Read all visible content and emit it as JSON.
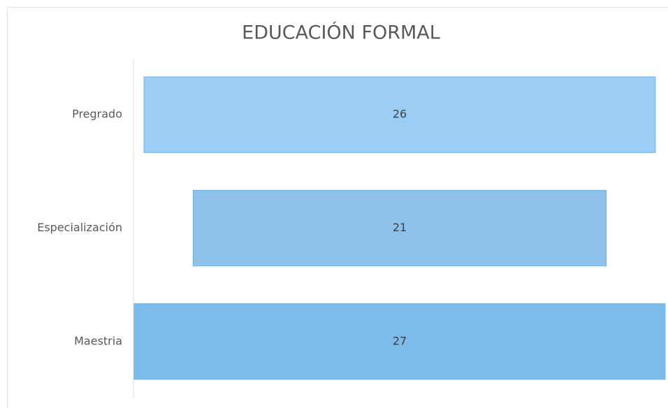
{
  "chart_data": {
    "type": "funnel",
    "title": "EDUCACIÓN FORMAL",
    "categories": [
      "Pregrado",
      "Especialización",
      "Maestria"
    ],
    "values": [
      26,
      21,
      27
    ],
    "colors": [
      "#9ccdf4",
      "#8fc2ea",
      "#7dbbeb"
    ]
  }
}
